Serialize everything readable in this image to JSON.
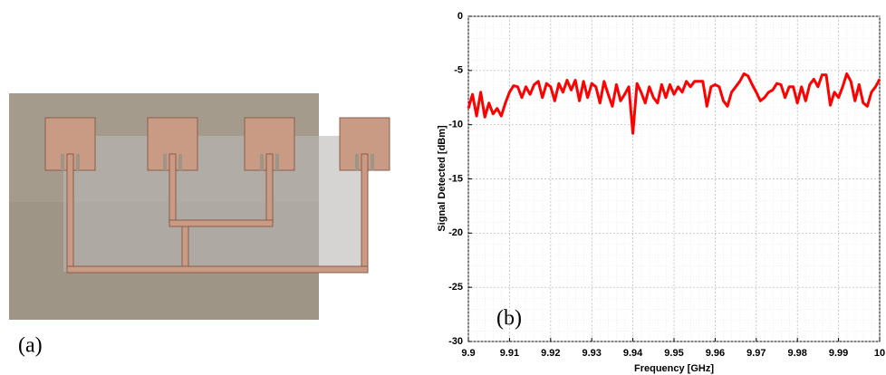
{
  "figure_label_a": "(a)",
  "chart_data": {
    "type": "line",
    "annotation": "(b)",
    "x_label": "Frequency [GHz]",
    "y_label": "Signal Detected [dBm]",
    "xlim": [
      9.9,
      10
    ],
    "ylim": [
      -30,
      0
    ],
    "xticks": [
      9.9,
      9.91,
      9.92,
      9.93,
      9.94,
      9.95,
      9.96,
      9.97,
      9.98,
      9.99,
      10
    ],
    "yticks": [
      -30,
      -25,
      -20,
      -15,
      -10,
      -5,
      0
    ],
    "grid": true,
    "series": [
      {
        "color": "#ff0000",
        "x": [
          9.9,
          9.901,
          9.902,
          9.903,
          9.904,
          9.905,
          9.906,
          9.907,
          9.908,
          9.909,
          9.91,
          9.911,
          9.912,
          9.913,
          9.914,
          9.915,
          9.916,
          9.917,
          9.918,
          9.919,
          9.92,
          9.921,
          9.922,
          9.923,
          9.924,
          9.925,
          9.926,
          9.927,
          9.928,
          9.929,
          9.93,
          9.931,
          9.932,
          9.933,
          9.934,
          9.935,
          9.936,
          9.937,
          9.938,
          9.939,
          9.94,
          9.941,
          9.942,
          9.943,
          9.944,
          9.945,
          9.946,
          9.947,
          9.948,
          9.949,
          9.95,
          9.951,
          9.952,
          9.953,
          9.954,
          9.955,
          9.956,
          9.957,
          9.958,
          9.959,
          9.96,
          9.961,
          9.962,
          9.963,
          9.964,
          9.965,
          9.966,
          9.967,
          9.968,
          9.969,
          9.97,
          9.971,
          9.972,
          9.973,
          9.974,
          9.975,
          9.976,
          9.977,
          9.978,
          9.979,
          9.98,
          9.981,
          9.982,
          9.983,
          9.984,
          9.985,
          9.986,
          9.987,
          9.988,
          9.989,
          9.99,
          9.991,
          9.992,
          9.993,
          9.994,
          9.995,
          9.996,
          9.997,
          9.998,
          9.999,
          10
        ],
        "values": [
          -8.5,
          -7.2,
          -9.2,
          -7.0,
          -9.3,
          -8.0,
          -9.0,
          -8.5,
          -9.2,
          -8.0,
          -7.0,
          -6.4,
          -6.5,
          -7.5,
          -6.5,
          -7.2,
          -6.3,
          -6.0,
          -7.5,
          -6.2,
          -6.5,
          -7.8,
          -6.2,
          -7.0,
          -5.9,
          -6.8,
          -5.9,
          -7.8,
          -6.0,
          -7.5,
          -6.2,
          -6.5,
          -8.0,
          -6.0,
          -7.2,
          -8.3,
          -6.3,
          -7.8,
          -7.2,
          -6.5,
          -10.8,
          -6.2,
          -7.0,
          -8.0,
          -6.5,
          -7.5,
          -8.0,
          -6.3,
          -7.5,
          -6.3,
          -7.2,
          -6.5,
          -7.0,
          -6.0,
          -6.5,
          -6.0,
          -6.0,
          -6.0,
          -8.3,
          -6.5,
          -6.3,
          -6.5,
          -7.8,
          -8.3,
          -7.0,
          -6.5,
          -6.0,
          -5.3,
          -5.5,
          -6.3,
          -7.0,
          -7.8,
          -7.5,
          -7.0,
          -6.8,
          -6.2,
          -6.3,
          -7.5,
          -6.5,
          -6.5,
          -8.0,
          -6.5,
          -7.8,
          -6.3,
          -5.8,
          -6.5,
          -5.4,
          -5.4,
          -8.2,
          -7.0,
          -7.5,
          -6.5,
          -5.3,
          -6.0,
          -7.8,
          -6.3,
          -8.0,
          -8.3,
          -7.0,
          -6.5,
          -5.8
        ]
      }
    ]
  }
}
